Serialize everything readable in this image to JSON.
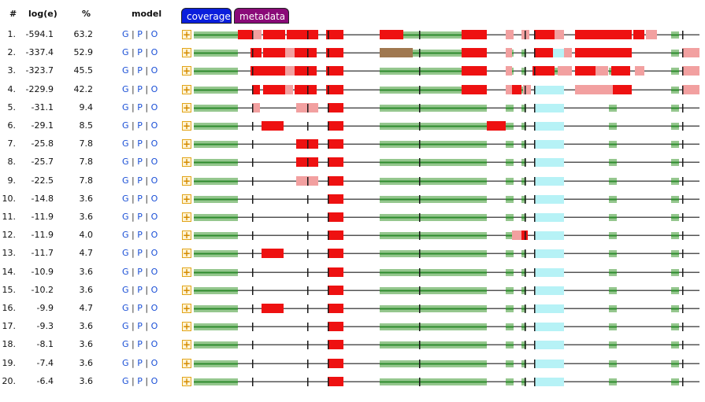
{
  "headers": {
    "num": "#",
    "loge": "log(e)",
    "pct": "%",
    "model": "model"
  },
  "tabs": {
    "coverage": "coverage",
    "metadata": "metadata"
  },
  "model_links": {
    "g": "G",
    "p": "P",
    "o": "O",
    "sep": "|"
  },
  "expand_symbol": "+",
  "colors": {
    "domain": "#95c78e",
    "domain_core": "#2e8b2e",
    "hit": "#ee1111",
    "weak_hit": "#f2a0a0",
    "brown": "#a07850",
    "cyan": "#b6f2f6",
    "line": "#555555"
  },
  "rows": [
    {
      "num": "1.",
      "loge": "-594.1",
      "pct": "63.2"
    },
    {
      "num": "2.",
      "loge": "-337.4",
      "pct": "52.9"
    },
    {
      "num": "3.",
      "loge": "-323.7",
      "pct": "45.5"
    },
    {
      "num": "4.",
      "loge": "-229.9",
      "pct": "42.2"
    },
    {
      "num": "5.",
      "loge": "-31.1",
      "pct": "9.4"
    },
    {
      "num": "6.",
      "loge": "-29.1",
      "pct": "8.5"
    },
    {
      "num": "7.",
      "loge": "-25.8",
      "pct": "7.8"
    },
    {
      "num": "8.",
      "loge": "-25.7",
      "pct": "7.8"
    },
    {
      "num": "9.",
      "loge": "-22.5",
      "pct": "7.8"
    },
    {
      "num": "10.",
      "loge": "-14.8",
      "pct": "3.6"
    },
    {
      "num": "11.",
      "loge": "-11.9",
      "pct": "3.6"
    },
    {
      "num": "12.",
      "loge": "-11.9",
      "pct": "4.0"
    },
    {
      "num": "13.",
      "loge": "-11.7",
      "pct": "4.7"
    },
    {
      "num": "14.",
      "loge": "-10.9",
      "pct": "3.6"
    },
    {
      "num": "15.",
      "loge": "-10.2",
      "pct": "3.6"
    },
    {
      "num": "16.",
      "loge": "-9.9",
      "pct": "4.7"
    },
    {
      "num": "17.",
      "loge": "-9.3",
      "pct": "3.6"
    },
    {
      "num": "18.",
      "loge": "-8.1",
      "pct": "3.6"
    },
    {
      "num": "19.",
      "loge": "-7.4",
      "pct": "3.6"
    },
    {
      "num": "20.",
      "loge": "-6.4",
      "pct": "3.6"
    }
  ]
}
